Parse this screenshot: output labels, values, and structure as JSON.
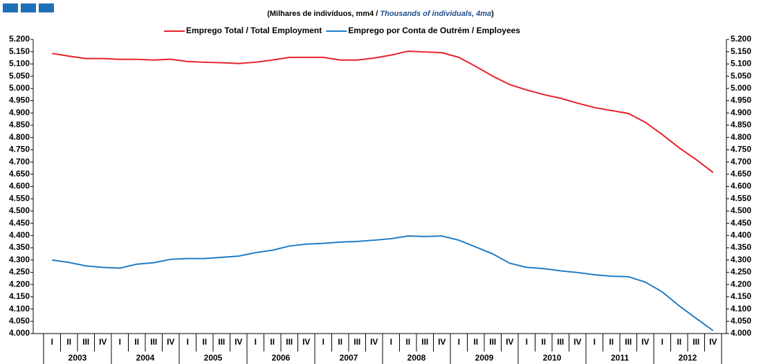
{
  "chart_data": {
    "type": "line",
    "subtitle": [
      "(Milhares de indivíduos, mm4 / ",
      "Thousands of individuals, 4ma",
      ")"
    ],
    "categories": [
      "I",
      "II",
      "III",
      "IV",
      "I",
      "II",
      "III",
      "IV",
      "I",
      "II",
      "III",
      "IV",
      "I",
      "II",
      "III",
      "IV",
      "I",
      "II",
      "III",
      "IV",
      "I",
      "II",
      "III",
      "IV",
      "I",
      "II",
      "III",
      "IV",
      "I",
      "II",
      "III",
      "IV",
      "I",
      "II",
      "III",
      "IV",
      "I",
      "II",
      "III",
      "IV"
    ],
    "years": [
      "2003",
      "2004",
      "2005",
      "2006",
      "2007",
      "2008",
      "2009",
      "2010",
      "2011",
      "2012"
    ],
    "series": [
      {
        "name": "Emprego Total / Total Employment",
        "color": "#e8202a",
        "values": [
          5143,
          5132,
          5122,
          5122,
          5119,
          5119,
          5116,
          5119,
          5110,
          5107,
          5105,
          5102,
          5107,
          5116,
          5127,
          5127,
          5127,
          5116,
          5116,
          5124,
          5136,
          5152,
          5149,
          5146,
          5127,
          5090,
          5050,
          5016,
          4994,
          4975,
          4960,
          4940,
          4922,
          4910,
          4898,
          4862,
          4812,
          4758,
          4710,
          4657
        ]
      },
      {
        "name": "Emprego por Conta de Outrém / Employees",
        "color": "#1f7bc4",
        "values": [
          4300,
          4290,
          4276,
          4270,
          4267,
          4283,
          4289,
          4303,
          4306,
          4306,
          4311,
          4316,
          4330,
          4340,
          4357,
          4365,
          4368,
          4373,
          4376,
          4381,
          4387,
          4398,
          4396,
          4398,
          4381,
          4353,
          4325,
          4287,
          4270,
          4265,
          4256,
          4249,
          4240,
          4234,
          4232,
          4210,
          4170,
          4113,
          4062,
          4012
        ]
      }
    ],
    "ylim": [
      4000,
      5200
    ],
    "yticks": [
      {
        "value": 4000,
        "label": "4.000"
      },
      {
        "value": 4050,
        "label": "4.050"
      },
      {
        "value": 4100,
        "label": "4.100"
      },
      {
        "value": 4150,
        "label": "4.150"
      },
      {
        "value": 4200,
        "label": "4.200"
      },
      {
        "value": 4250,
        "label": "4.250"
      },
      {
        "value": 4300,
        "label": "4.300"
      },
      {
        "value": 4350,
        "label": "4.350"
      },
      {
        "value": 4400,
        "label": "4.400"
      },
      {
        "value": 4450,
        "label": "4.450"
      },
      {
        "value": 4500,
        "label": "4.500"
      },
      {
        "value": 4550,
        "label": "4.550"
      },
      {
        "value": 4600,
        "label": "4.600"
      },
      {
        "value": 4650,
        "label": "4.650"
      },
      {
        "value": 4700,
        "label": "4.700"
      },
      {
        "value": 4750,
        "label": "4.750"
      },
      {
        "value": 4800,
        "label": "4.800"
      },
      {
        "value": 4850,
        "label": "4.850"
      },
      {
        "value": 4900,
        "label": "4.900"
      },
      {
        "value": 4950,
        "label": "4.950"
      },
      {
        "value": 5000,
        "label": "5.000"
      },
      {
        "value": 5050,
        "label": "5.050"
      },
      {
        "value": 5100,
        "label": "5.100"
      },
      {
        "value": 5150,
        "label": "5.150"
      },
      {
        "value": 5200,
        "label": "5.200"
      }
    ],
    "y2lim": [
      4000,
      5200
    ],
    "y2ticks": [
      {
        "value": 4000,
        "label": "4.000"
      },
      {
        "value": 4050,
        "label": "4.050"
      },
      {
        "value": 4100,
        "label": "4.100"
      },
      {
        "value": 4150,
        "label": "4.150"
      },
      {
        "value": 4200,
        "label": "4.200"
      },
      {
        "value": 4250,
        "label": "4.250"
      },
      {
        "value": 4300,
        "label": "4.300"
      },
      {
        "value": 4350,
        "label": "4.350"
      },
      {
        "value": 4400,
        "label": "4.400"
      },
      {
        "value": 4450,
        "label": "4.450"
      },
      {
        "value": 4500,
        "label": "4.500"
      },
      {
        "value": 4550,
        "label": "4.550"
      },
      {
        "value": 4600,
        "label": "4.600"
      },
      {
        "value": 4650,
        "label": "4.650"
      },
      {
        "value": 4700,
        "label": "4.700"
      },
      {
        "value": 4750,
        "label": "4.750"
      },
      {
        "value": 4800,
        "label": "4.800"
      },
      {
        "value": 4850,
        "label": "4.850"
      },
      {
        "value": 4900,
        "label": "4.900"
      },
      {
        "value": 4950,
        "label": "4.950"
      },
      {
        "value": 5000,
        "label": "5.000"
      },
      {
        "value": 5050,
        "label": "5.050"
      },
      {
        "value": 5100,
        "label": "5.100"
      },
      {
        "value": 5150,
        "label": "5.150"
      },
      {
        "value": 5200,
        "label": "5.200"
      }
    ],
    "legend": "top",
    "grid": false
  }
}
